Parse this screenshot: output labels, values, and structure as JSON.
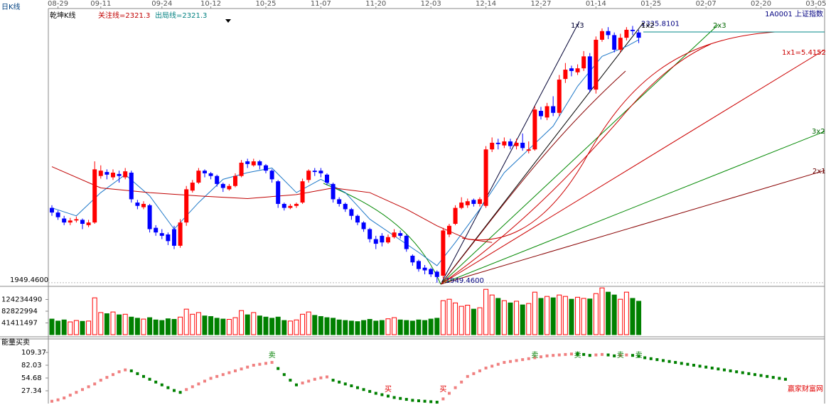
{
  "header": {
    "period": "日K线",
    "indicator_name": "乾坤K线",
    "watch_line": "关注线=2321.3",
    "exit_line": "出局线=2321.3",
    "symbol": "1A0001 上证指数",
    "watermark": "赢家财富网"
  },
  "chart_data": [
    {
      "type": "candlestick",
      "xlim": [
        -0.58,
        126.4
      ],
      "ylim": [
        1945,
        2362
      ],
      "yticks": [
        {
          "value": 1949.46,
          "label": "1949.4600"
        }
      ],
      "xticks": [
        {
          "value": 1,
          "label": "08-29"
        },
        {
          "value": 8,
          "label": "09-11"
        },
        {
          "value": 18,
          "label": "09-24"
        },
        {
          "value": 26,
          "label": "10-12"
        },
        {
          "value": 35,
          "label": "10-25"
        },
        {
          "value": 44,
          "label": "11-07"
        },
        {
          "value": 53,
          "label": "11-20"
        },
        {
          "value": 62,
          "label": "12-03"
        },
        {
          "value": 71,
          "label": "12-14"
        },
        {
          "value": 80,
          "label": "12-27"
        },
        {
          "value": 89,
          "label": "01-14"
        },
        {
          "value": 98,
          "label": "01-25"
        },
        {
          "value": 107,
          "label": "02-07"
        },
        {
          "value": 116,
          "label": "02-20"
        },
        {
          "value": 125,
          "label": "03-05"
        }
      ],
      "up_color": "#ff0000",
      "down_color": "#0000ff",
      "ohlc": [
        [
          2062,
          2066,
          2050,
          2055
        ],
        [
          2055,
          2058,
          2044,
          2048
        ],
        [
          2046,
          2050,
          2036,
          2040
        ],
        [
          2040,
          2047,
          2036,
          2043
        ],
        [
          2043,
          2049,
          2040,
          2045
        ],
        [
          2044,
          2046,
          2030,
          2038
        ],
        [
          2036,
          2044,
          2033,
          2040
        ],
        [
          2040,
          2132,
          2038,
          2120
        ],
        [
          2110,
          2126,
          2106,
          2118
        ],
        [
          2116,
          2120,
          2105,
          2112
        ],
        [
          2108,
          2120,
          2104,
          2115
        ],
        [
          2113,
          2118,
          2100,
          2110
        ],
        [
          2108,
          2122,
          2105,
          2117
        ],
        [
          2115,
          2118,
          2070,
          2075
        ],
        [
          2070,
          2074,
          2060,
          2065
        ],
        [
          2063,
          2072,
          2060,
          2068
        ],
        [
          2066,
          2068,
          2025,
          2030
        ],
        [
          2032,
          2036,
          2020,
          2025
        ],
        [
          2024,
          2030,
          2015,
          2020
        ],
        [
          2022,
          2025,
          2006,
          2012
        ],
        [
          2030,
          2035,
          2000,
          2005
        ],
        [
          2005,
          2045,
          2002,
          2040
        ],
        [
          2040,
          2095,
          2035,
          2090
        ],
        [
          2088,
          2104,
          2085,
          2100
        ],
        [
          2100,
          2122,
          2098,
          2118
        ],
        [
          2118,
          2120,
          2108,
          2114
        ],
        [
          2114,
          2116,
          2105,
          2110
        ],
        [
          2110,
          2112,
          2094,
          2098
        ],
        [
          2098,
          2100,
          2086,
          2092
        ],
        [
          2090,
          2098,
          2088,
          2095
        ],
        [
          2095,
          2114,
          2093,
          2110
        ],
        [
          2110,
          2134,
          2108,
          2130
        ],
        [
          2132,
          2136,
          2122,
          2128
        ],
        [
          2126,
          2136,
          2124,
          2132
        ],
        [
          2132,
          2134,
          2120,
          2126
        ],
        [
          2126,
          2128,
          2114,
          2118
        ],
        [
          2118,
          2120,
          2100,
          2105
        ],
        [
          2102,
          2104,
          2062,
          2068
        ],
        [
          2068,
          2070,
          2058,
          2062
        ],
        [
          2062,
          2068,
          2060,
          2065
        ],
        [
          2065,
          2070,
          2062,
          2068
        ],
        [
          2070,
          2106,
          2068,
          2102
        ],
        [
          2104,
          2120,
          2100,
          2118
        ],
        [
          2118,
          2122,
          2110,
          2116
        ],
        [
          2118,
          2122,
          2108,
          2114
        ],
        [
          2112,
          2114,
          2096,
          2100
        ],
        [
          2098,
          2100,
          2070,
          2075
        ],
        [
          2075,
          2078,
          2064,
          2068
        ],
        [
          2068,
          2070,
          2056,
          2060
        ],
        [
          2060,
          2062,
          2044,
          2050
        ],
        [
          2050,
          2052,
          2036,
          2040
        ],
        [
          2040,
          2042,
          2026,
          2030
        ],
        [
          2030,
          2032,
          2010,
          2015
        ],
        [
          2015,
          2020,
          2000,
          2008
        ],
        [
          2020,
          2024,
          2004,
          2010
        ],
        [
          2010,
          2022,
          2008,
          2018
        ],
        [
          2018,
          2030,
          2016,
          2025
        ],
        [
          2024,
          2028,
          2016,
          2020
        ],
        [
          2020,
          2022,
          1996,
          2000
        ],
        [
          1990,
          1992,
          1975,
          1980
        ],
        [
          1982,
          1984,
          1966,
          1970
        ],
        [
          1972,
          1976,
          1962,
          1968
        ],
        [
          1970,
          1972,
          1958,
          1962
        ],
        [
          1966,
          1968,
          1949.46,
          1958
        ],
        [
          1960,
          2032,
          1956,
          2028
        ],
        [
          2022,
          2038,
          2018,
          2035
        ],
        [
          2038,
          2066,
          2036,
          2062
        ],
        [
          2062,
          2078,
          2060,
          2070
        ],
        [
          2066,
          2076,
          2062,
          2072
        ],
        [
          2074,
          2076,
          2064,
          2068
        ],
        [
          2068,
          2078,
          2064,
          2075
        ],
        [
          2065,
          2155,
          2062,
          2150
        ],
        [
          2150,
          2168,
          2146,
          2160
        ],
        [
          2160,
          2166,
          2150,
          2158
        ],
        [
          2156,
          2168,
          2152,
          2162
        ],
        [
          2162,
          2166,
          2150,
          2155
        ],
        [
          2155,
          2166,
          2150,
          2160
        ],
        [
          2160,
          2174,
          2148,
          2152
        ],
        [
          2148,
          2162,
          2144,
          2150
        ],
        [
          2150,
          2215,
          2148,
          2210
        ],
        [
          2208,
          2214,
          2195,
          2200
        ],
        [
          2198,
          2220,
          2194,
          2215
        ],
        [
          2215,
          2230,
          2200,
          2205
        ],
        [
          2205,
          2262,
          2200,
          2255
        ],
        [
          2256,
          2280,
          2250,
          2270
        ],
        [
          2272,
          2276,
          2260,
          2268
        ],
        [
          2266,
          2278,
          2262,
          2272
        ],
        [
          2272,
          2298,
          2268,
          2290
        ],
        [
          2290,
          2295,
          2236,
          2240
        ],
        [
          2240,
          2320,
          2234,
          2315
        ],
        [
          2315,
          2332,
          2312,
          2328
        ],
        [
          2328,
          2334,
          2316,
          2322
        ],
        [
          2322,
          2326,
          2296,
          2300
        ],
        [
          2300,
          2324,
          2296,
          2318
        ],
        [
          2318,
          2334,
          2314,
          2330
        ],
        [
          2330,
          2335.81,
          2322,
          2328
        ],
        [
          2326,
          2330,
          2310,
          2318
        ]
      ],
      "series": [
        {
          "color": "#1e78c8",
          "x": [
            0,
            4,
            8,
            12,
            16,
            20,
            24,
            28,
            32,
            36,
            40,
            44,
            48,
            52,
            56,
            60,
            63,
            66,
            70,
            74,
            78,
            82,
            86,
            90,
            94,
            96
          ],
          "values": [
            2062,
            2050,
            2085,
            2112,
            2080,
            2030,
            2070,
            2105,
            2115,
            2122,
            2085,
            2105,
            2085,
            2045,
            2020,
            1995,
            1975,
            2010,
            2060,
            2115,
            2150,
            2185,
            2245,
            2290,
            2305,
            2315
          ]
        },
        {
          "color": "#c00000",
          "x": [
            0,
            8,
            16,
            24,
            32,
            40,
            46,
            52,
            58,
            63,
            68,
            72
          ],
          "values": [
            2124,
            2092,
            2085,
            2080,
            2076,
            2082,
            2092,
            2085,
            2060,
            2035,
            2015,
            2010
          ]
        }
      ],
      "annotations": [
        {
          "x": 63,
          "value": 1949.46,
          "label": "1949.4600"
        },
        {
          "x": 95,
          "value": 2335.81,
          "label": "2335.8101"
        }
      ],
      "fan_labels": [
        "1x3",
        "1x2",
        "2x3",
        "1x1=5.4152",
        "3x2",
        "2x1"
      ]
    },
    {
      "type": "bar",
      "xlim": [
        -0.58,
        126.4
      ],
      "ylim": [
        0,
        168000000
      ],
      "yticks": [
        124234490,
        82822994,
        41411497
      ],
      "up_color": "#ff0000",
      "down_color": "#008000",
      "values": [
        55000000,
        48000000,
        52000000,
        45000000,
        50000000,
        47000000,
        48000000,
        130000000,
        78000000,
        74000000,
        80000000,
        70000000,
        72000000,
        62000000,
        58000000,
        55000000,
        60000000,
        52000000,
        50000000,
        56000000,
        54000000,
        62000000,
        90000000,
        72000000,
        78000000,
        66000000,
        64000000,
        58000000,
        55000000,
        54000000,
        60000000,
        85000000,
        70000000,
        78000000,
        66000000,
        62000000,
        58000000,
        62000000,
        50000000,
        48000000,
        52000000,
        72000000,
        80000000,
        68000000,
        64000000,
        60000000,
        58000000,
        52000000,
        50000000,
        48000000,
        46000000,
        50000000,
        54000000,
        48000000,
        50000000,
        56000000,
        60000000,
        52000000,
        50000000,
        48000000,
        52000000,
        50000000,
        55000000,
        58000000,
        120000000,
        125000000,
        112000000,
        100000000,
        104000000,
        90000000,
        95000000,
        160000000,
        140000000,
        128000000,
        120000000,
        112000000,
        118000000,
        105000000,
        110000000,
        150000000,
        128000000,
        135000000,
        130000000,
        140000000,
        135000000,
        125000000,
        132000000,
        128000000,
        126000000,
        145000000,
        165000000,
        150000000,
        140000000,
        125000000,
        150000000,
        128000000,
        118000000
      ]
    },
    {
      "type": "dot",
      "title": "能量买卖",
      "xlim": [
        -0.58,
        126.4
      ],
      "ylim": [
        0,
        127.6
      ],
      "yticks": [
        109.37,
        82.03,
        54.68,
        27.34
      ],
      "up_color": "#f08080",
      "down_color": "#008000",
      "values": [
        5,
        8,
        12,
        18,
        24,
        30,
        36,
        42,
        50,
        56,
        62,
        68,
        72,
        70,
        64,
        58,
        52,
        46,
        40,
        34,
        28,
        24,
        30,
        36,
        42,
        48,
        54,
        58,
        62,
        66,
        70,
        74,
        78,
        82,
        84,
        86,
        88,
        75,
        62,
        50,
        40,
        44,
        48,
        52,
        55,
        57,
        50,
        46,
        42,
        38,
        34,
        30,
        26,
        22,
        19,
        16,
        13,
        11,
        9,
        7,
        6,
        5,
        4,
        3,
        10,
        22,
        34,
        46,
        58,
        64,
        70,
        76,
        80,
        84,
        88,
        90,
        92,
        94,
        96,
        98,
        100,
        102,
        103,
        104,
        105,
        106,
        106,
        105,
        103,
        104,
        105,
        104,
        102,
        103,
        104,
        103,
        101,
        98,
        96,
        94,
        92,
        90,
        88,
        86,
        84,
        82,
        80,
        78,
        76,
        74,
        72,
        70,
        68,
        66,
        64,
        62,
        60,
        58,
        56,
        54,
        52
      ],
      "sell": [
        {
          "x": 36,
          "label": "卖"
        },
        {
          "x": 79,
          "label": "卖"
        },
        {
          "x": 86,
          "label": "卖"
        },
        {
          "x": 93,
          "label": "卖"
        },
        {
          "x": 96,
          "label": "卖"
        }
      ],
      "buy": [
        {
          "x": 55,
          "label": "买"
        },
        {
          "x": 64,
          "label": "买"
        }
      ]
    }
  ]
}
